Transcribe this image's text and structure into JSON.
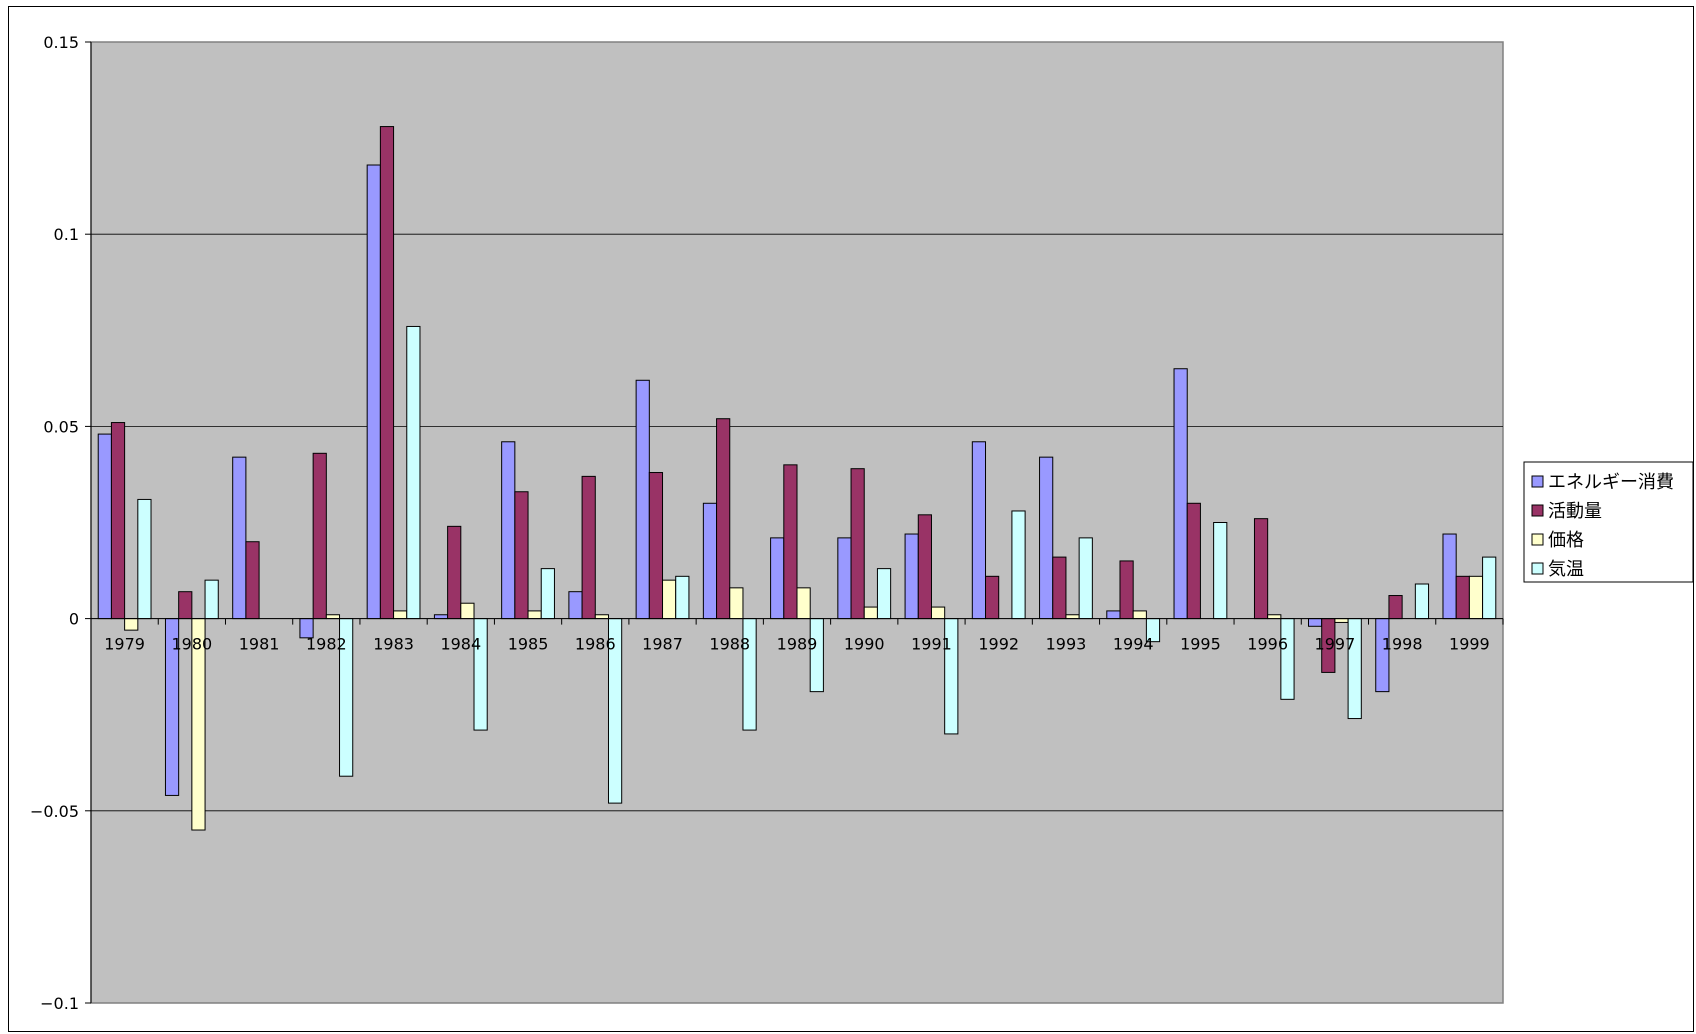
{
  "chart_data": {
    "type": "bar",
    "categories": [
      "1979",
      "1980",
      "1981",
      "1982",
      "1983",
      "1984",
      "1985",
      "1986",
      "1987",
      "1988",
      "1989",
      "1990",
      "1991",
      "1992",
      "1993",
      "1994",
      "1995",
      "1996",
      "1997",
      "1998",
      "1999"
    ],
    "series": [
      {
        "name": "エネルギー消費",
        "color": "#9999FF",
        "values": [
          0.048,
          -0.046,
          0.042,
          -0.005,
          0.118,
          0.001,
          0.046,
          0.007,
          0.062,
          0.03,
          0.021,
          0.021,
          0.022,
          0.046,
          0.042,
          0.002,
          0.065,
          0.0,
          -0.002,
          -0.019,
          0.022
        ]
      },
      {
        "name": "活動量",
        "color": "#993366",
        "values": [
          0.051,
          0.007,
          0.02,
          0.043,
          0.128,
          0.024,
          0.033,
          0.037,
          0.038,
          0.052,
          0.04,
          0.039,
          0.027,
          0.011,
          0.016,
          0.015,
          0.03,
          0.026,
          -0.014,
          0.006,
          0.011
        ]
      },
      {
        "name": "価格",
        "color": "#FFFFCC",
        "values": [
          -0.003,
          -0.055,
          0.0,
          0.001,
          0.002,
          0.004,
          0.002,
          0.001,
          0.01,
          0.008,
          0.008,
          0.003,
          0.003,
          0.0,
          0.001,
          0.002,
          0.0,
          0.001,
          -0.001,
          0.0,
          0.011
        ]
      },
      {
        "name": "気温",
        "color": "#CCFFFF",
        "values": [
          0.031,
          0.01,
          0.0,
          -0.041,
          0.076,
          -0.029,
          0.013,
          -0.048,
          0.011,
          -0.029,
          -0.019,
          0.013,
          -0.03,
          0.028,
          0.021,
          -0.006,
          0.025,
          -0.021,
          -0.026,
          0.009,
          0.016
        ]
      }
    ],
    "ylim": [
      -0.1,
      0.15
    ],
    "yticks": [
      0.15,
      0.1,
      0.05,
      0,
      -0.05,
      -0.1
    ],
    "ytick_labels": [
      "0.15",
      "0.1",
      "0.05",
      "0",
      "−0.05",
      "−0.1"
    ],
    "plot_background": "#C0C0C0",
    "grid": true,
    "legend_position": "right"
  }
}
